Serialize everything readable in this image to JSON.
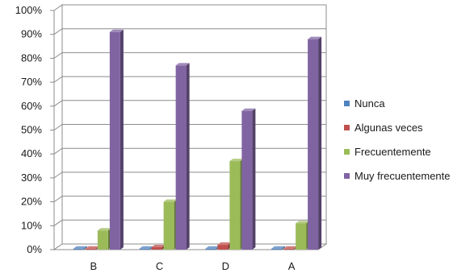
{
  "chart_data": {
    "type": "bar",
    "categories": [
      "B",
      "C",
      "D",
      "A"
    ],
    "series": [
      {
        "name": "Nunca",
        "values": [
          0,
          0,
          0,
          0
        ],
        "color": "#4f81bd"
      },
      {
        "name": "Algunas veces",
        "values": [
          0,
          1,
          2,
          0
        ],
        "color": "#c0504d"
      },
      {
        "name": "Frecuentemente",
        "values": [
          8,
          20,
          37,
          11
        ],
        "color": "#9bbb59"
      },
      {
        "name": "Muy frecuentemente",
        "values": [
          91,
          77,
          58,
          88
        ],
        "color": "#8064a2"
      }
    ],
    "ylim": [
      0,
      100
    ],
    "yticks": [
      "0%",
      "10%",
      "20%",
      "30%",
      "40%",
      "50%",
      "60%",
      "70%",
      "80%",
      "90%",
      "100%"
    ],
    "title": "",
    "xlabel": "",
    "ylabel": "",
    "grid": true,
    "legend_position": "right",
    "style": "3d-clustered-column"
  }
}
